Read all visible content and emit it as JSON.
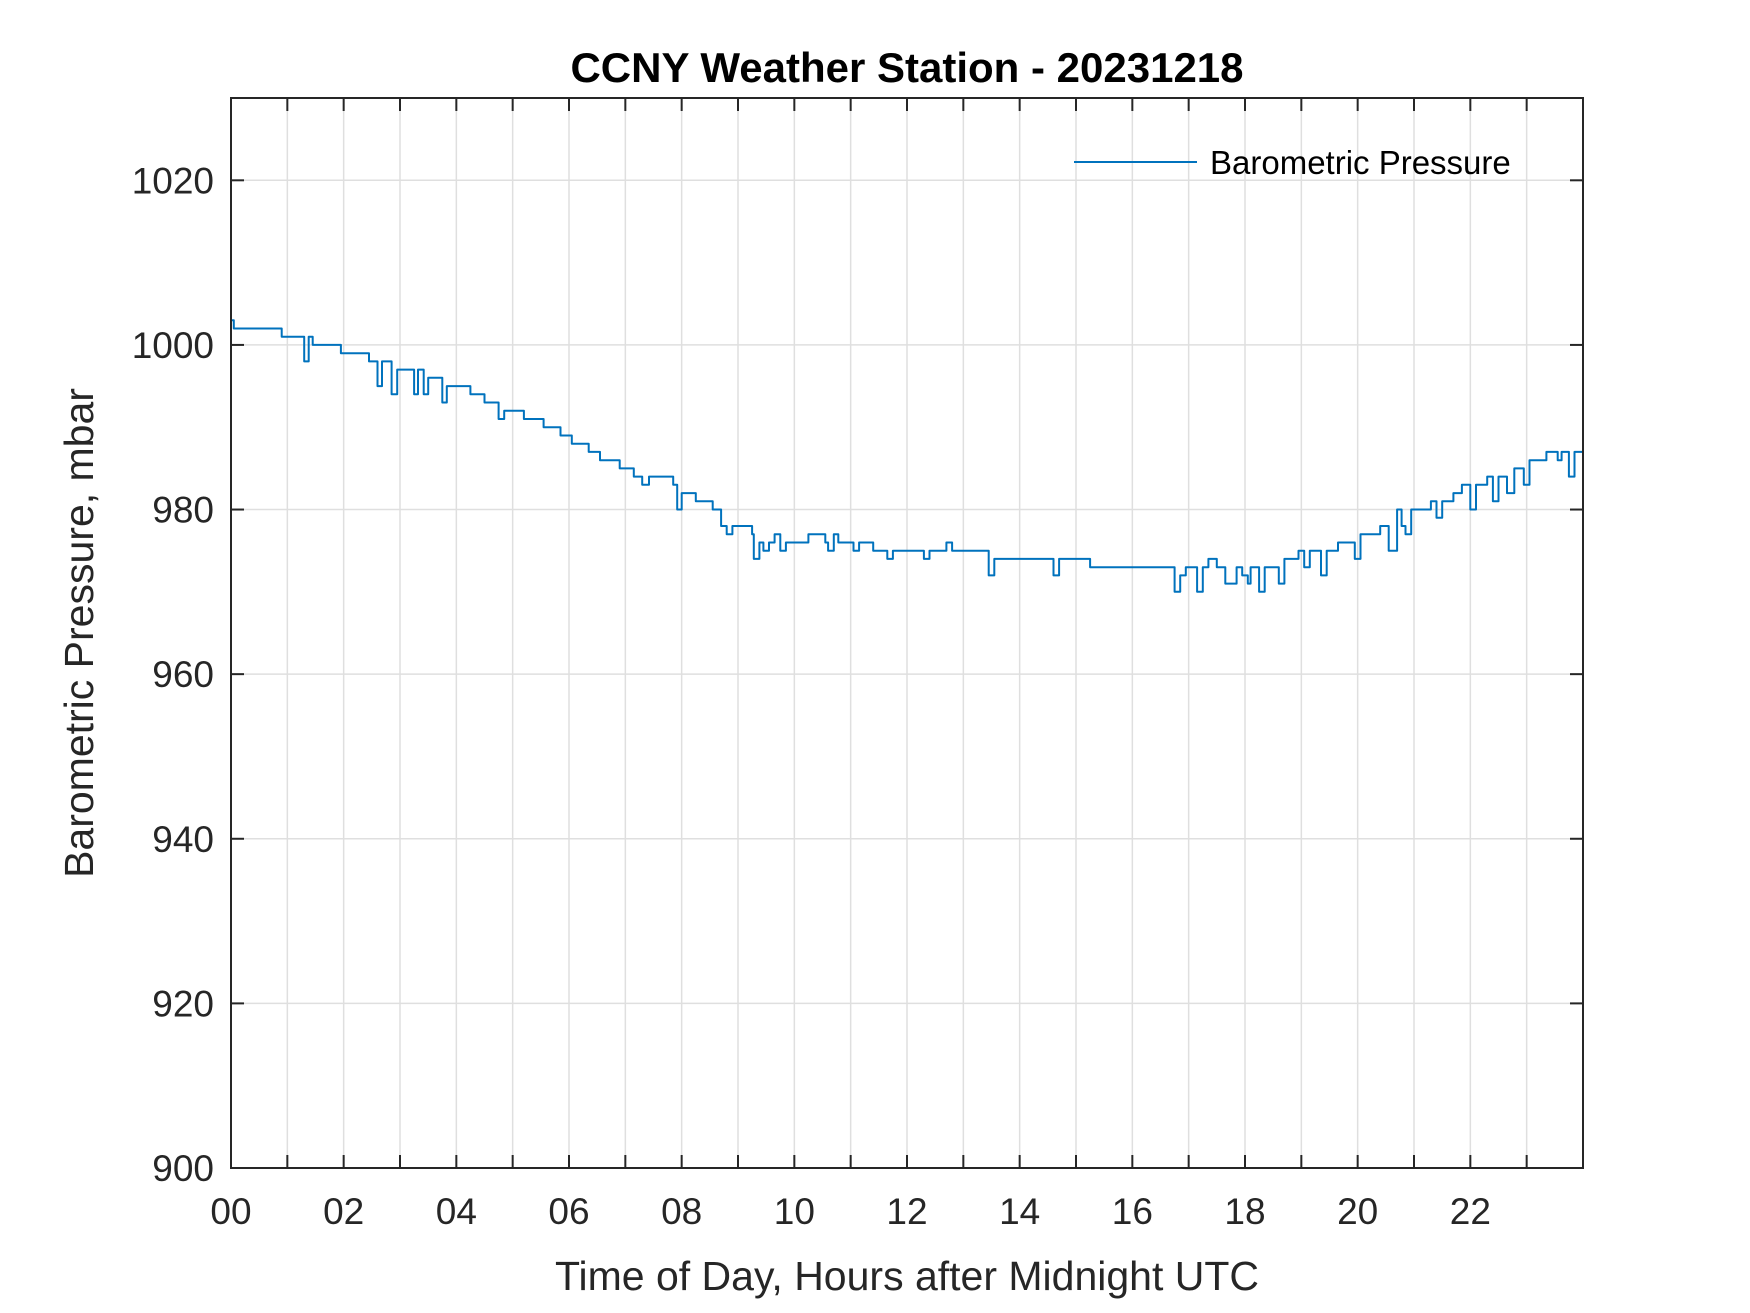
{
  "chart_data": {
    "type": "line",
    "title": "CCNY Weather Station - 20231218",
    "xlabel": "Time of Day, Hours after Midnight UTC",
    "ylabel": "Barometric Pressure, mbar",
    "xlim": [
      0,
      24
    ],
    "ylim": [
      900,
      1030
    ],
    "x_ticks": [
      0,
      2,
      4,
      6,
      8,
      10,
      12,
      14,
      16,
      18,
      20,
      22
    ],
    "x_tick_labels": [
      "00",
      "02",
      "04",
      "06",
      "08",
      "10",
      "12",
      "14",
      "16",
      "18",
      "20",
      "22"
    ],
    "x_minor_ticks": [
      1,
      3,
      5,
      7,
      9,
      11,
      13,
      15,
      17,
      19,
      21,
      23
    ],
    "y_ticks": [
      900,
      920,
      940,
      960,
      980,
      1000,
      1020
    ],
    "y_tick_labels": [
      "900",
      "920",
      "940",
      "960",
      "980",
      "1000",
      "1020"
    ],
    "grid": true,
    "legend": {
      "position": "top-right",
      "entries": [
        "Barometric Pressure"
      ]
    },
    "series": [
      {
        "name": "Barometric Pressure",
        "color": "#0072BD",
        "step": true,
        "points": [
          [
            0.0,
            1003
          ],
          [
            0.05,
            1002
          ],
          [
            0.9,
            1001
          ],
          [
            1.3,
            998
          ],
          [
            1.38,
            1001
          ],
          [
            1.45,
            1000
          ],
          [
            1.95,
            999
          ],
          [
            2.45,
            998
          ],
          [
            2.6,
            995
          ],
          [
            2.68,
            998
          ],
          [
            2.85,
            994
          ],
          [
            2.95,
            997
          ],
          [
            3.25,
            994
          ],
          [
            3.32,
            997
          ],
          [
            3.42,
            994
          ],
          [
            3.5,
            996
          ],
          [
            3.75,
            993
          ],
          [
            3.83,
            995
          ],
          [
            4.25,
            994
          ],
          [
            4.5,
            993
          ],
          [
            4.75,
            991
          ],
          [
            4.85,
            992
          ],
          [
            5.2,
            991
          ],
          [
            5.55,
            990
          ],
          [
            5.85,
            989
          ],
          [
            6.05,
            988
          ],
          [
            6.35,
            987
          ],
          [
            6.55,
            986
          ],
          [
            6.9,
            985
          ],
          [
            7.15,
            984
          ],
          [
            7.3,
            983
          ],
          [
            7.42,
            984
          ],
          [
            7.85,
            983
          ],
          [
            7.92,
            980
          ],
          [
            8.0,
            982
          ],
          [
            8.25,
            981
          ],
          [
            8.55,
            980
          ],
          [
            8.7,
            978
          ],
          [
            8.8,
            977
          ],
          [
            8.9,
            978
          ],
          [
            9.25,
            977
          ],
          [
            9.28,
            974
          ],
          [
            9.38,
            976
          ],
          [
            9.45,
            975
          ],
          [
            9.55,
            976
          ],
          [
            9.65,
            977
          ],
          [
            9.75,
            975
          ],
          [
            9.85,
            976
          ],
          [
            10.25,
            977
          ],
          [
            10.55,
            976
          ],
          [
            10.6,
            975
          ],
          [
            10.7,
            977
          ],
          [
            10.78,
            976
          ],
          [
            11.05,
            975
          ],
          [
            11.15,
            976
          ],
          [
            11.4,
            975
          ],
          [
            11.65,
            974
          ],
          [
            11.75,
            975
          ],
          [
            12.3,
            974
          ],
          [
            12.4,
            975
          ],
          [
            12.7,
            976
          ],
          [
            12.8,
            975
          ],
          [
            13.45,
            972
          ],
          [
            13.55,
            974
          ],
          [
            14.6,
            972
          ],
          [
            14.7,
            974
          ],
          [
            15.25,
            973
          ],
          [
            16.75,
            970
          ],
          [
            16.85,
            972
          ],
          [
            16.95,
            973
          ],
          [
            17.1,
            973
          ],
          [
            17.15,
            970
          ],
          [
            17.25,
            973
          ],
          [
            17.35,
            974
          ],
          [
            17.5,
            973
          ],
          [
            17.65,
            971
          ],
          [
            17.85,
            973
          ],
          [
            17.95,
            972
          ],
          [
            18.05,
            971
          ],
          [
            18.1,
            973
          ],
          [
            18.25,
            970
          ],
          [
            18.35,
            973
          ],
          [
            18.6,
            971
          ],
          [
            18.7,
            974
          ],
          [
            18.95,
            975
          ],
          [
            19.05,
            973
          ],
          [
            19.15,
            975
          ],
          [
            19.35,
            972
          ],
          [
            19.45,
            975
          ],
          [
            19.65,
            976
          ],
          [
            19.95,
            974
          ],
          [
            20.05,
            977
          ],
          [
            20.4,
            978
          ],
          [
            20.55,
            975
          ],
          [
            20.7,
            980
          ],
          [
            20.78,
            978
          ],
          [
            20.85,
            977
          ],
          [
            20.95,
            980
          ],
          [
            21.3,
            981
          ],
          [
            21.4,
            979
          ],
          [
            21.5,
            981
          ],
          [
            21.7,
            982
          ],
          [
            21.85,
            983
          ],
          [
            22.0,
            980
          ],
          [
            22.1,
            983
          ],
          [
            22.3,
            984
          ],
          [
            22.4,
            981
          ],
          [
            22.5,
            984
          ],
          [
            22.65,
            982
          ],
          [
            22.78,
            985
          ],
          [
            22.95,
            983
          ],
          [
            23.05,
            986
          ],
          [
            23.35,
            987
          ],
          [
            23.55,
            986
          ],
          [
            23.62,
            987
          ],
          [
            23.75,
            984
          ],
          [
            23.85,
            987
          ],
          [
            24.0,
            987
          ]
        ]
      }
    ]
  }
}
